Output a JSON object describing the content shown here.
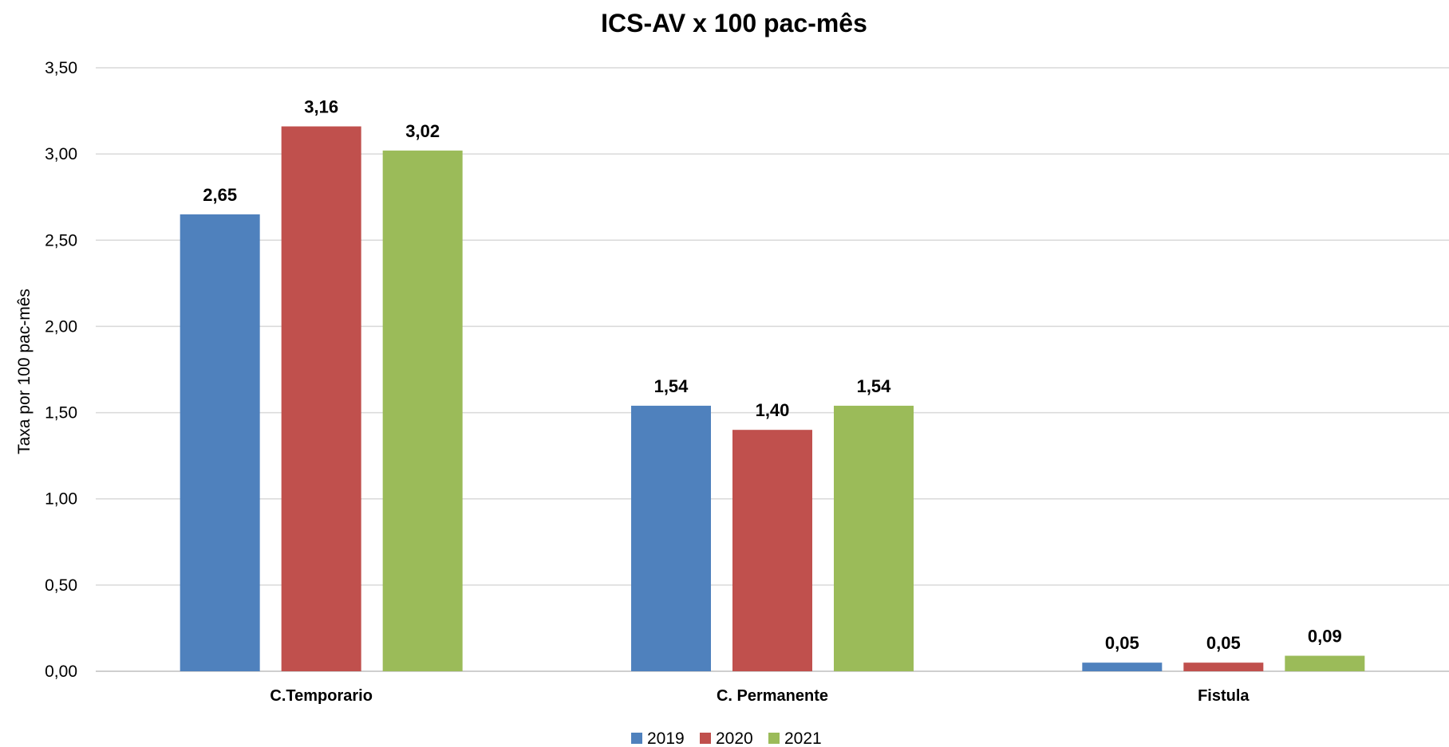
{
  "chart_data": {
    "type": "bar",
    "title": "ICS-AV x 100 pac-mês",
    "xlabel": "",
    "ylabel": "Taxa por 100 pac-mês",
    "categories": [
      "C.Temporario",
      "C. Permanente",
      "Fistula"
    ],
    "series": [
      {
        "name": "2019",
        "color": "#4f81bd",
        "values": [
          2.65,
          1.54,
          0.05
        ],
        "labels": [
          "2,65",
          "1,54",
          "0,05"
        ]
      },
      {
        "name": "2020",
        "color": "#c0504d",
        "values": [
          3.16,
          1.4,
          0.05
        ],
        "labels": [
          "3,16",
          "1,40",
          "0,05"
        ]
      },
      {
        "name": "2021",
        "color": "#9bbb59",
        "values": [
          3.02,
          1.54,
          0.09
        ],
        "labels": [
          "3,02",
          "1,54",
          "0,09"
        ]
      }
    ],
    "ylim": [
      0,
      3.5
    ],
    "yticks": [
      0,
      0.5,
      1.0,
      1.5,
      2.0,
      2.5,
      3.0,
      3.5
    ],
    "ytick_labels": [
      "0,00",
      "0,50",
      "1,00",
      "1,50",
      "2,00",
      "2,50",
      "3,00",
      "3,50"
    ],
    "grid": true,
    "legend_position": "bottom"
  }
}
